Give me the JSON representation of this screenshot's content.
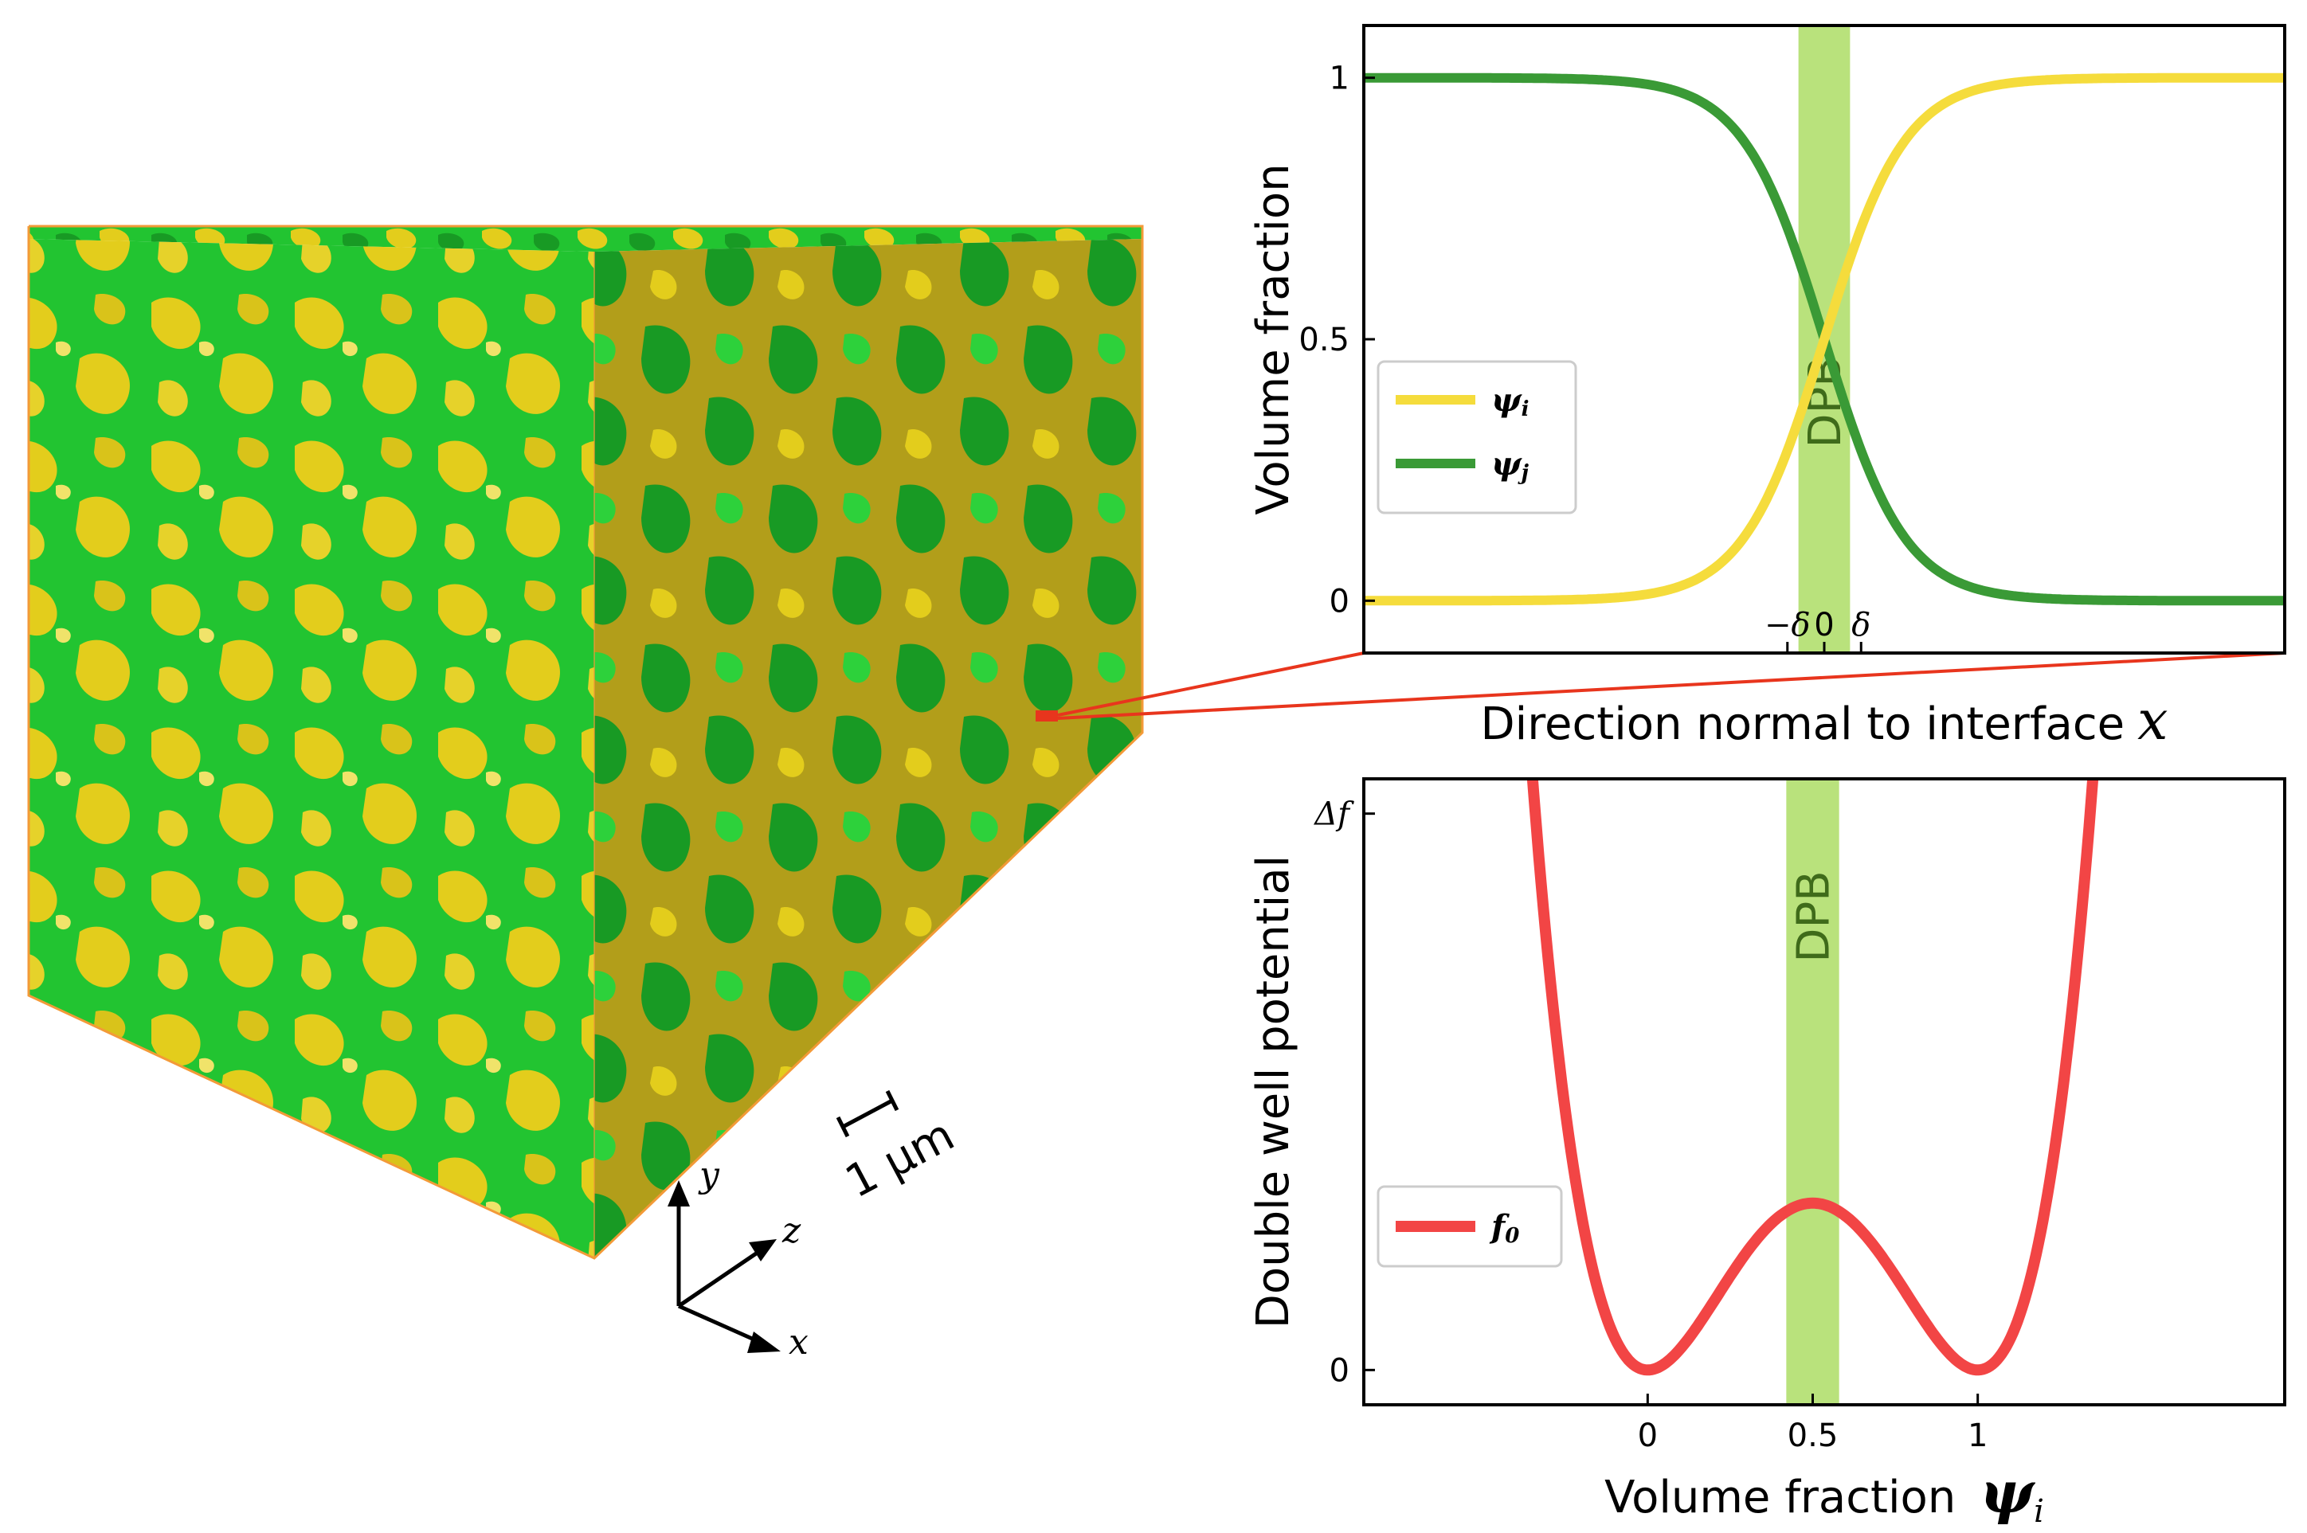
{
  "colors": {
    "yellow": "#f5dc3c",
    "green_dark": "#3a9a36",
    "red": "#f24545",
    "dpb_band": "#b9e27c",
    "dpb_text": "#3f6b1a",
    "cube_green": "#22c431",
    "cube_green_dark": "#189a24",
    "cube_yellow": "#e3cd1c",
    "cube_yellow_dark": "#b29e1a",
    "cube_edge": "#f39a38",
    "zoom_line": "#e8351d"
  },
  "cube": {
    "scale_bar_label": "1 μm",
    "axis_x": "x",
    "axis_y": "y",
    "axis_z": "z"
  },
  "chart_data": [
    {
      "type": "line",
      "title": "",
      "ylabel": "Volume fraction",
      "xlabel": "Direction normal to interface",
      "xlabel_symbol": "x",
      "x_ticks": [
        "−δ",
        "0",
        "δ"
      ],
      "x_tick_values": [
        -1,
        0,
        1
      ],
      "xlim": [
        -12.5,
        12.5
      ],
      "ylim": [
        -0.1,
        1.1
      ],
      "y_ticks": [
        "0",
        "0.5",
        "1"
      ],
      "y_tick_values": [
        0,
        0.5,
        1
      ],
      "band": {
        "label": "DPB",
        "range": [
          -0.7,
          0.7
        ]
      },
      "series": [
        {
          "name": "ψi",
          "legend_main": "ψ",
          "legend_sub": "i",
          "formula": "0.5*(1+tanh(x/2.2))",
          "color": "#f5dc3c"
        },
        {
          "name": "ψj",
          "legend_main": "ψ",
          "legend_sub": "j",
          "formula": "0.5*(1-tanh(x/2.2))",
          "color": "#3a9a36"
        }
      ],
      "legend_position": "middle-left"
    },
    {
      "type": "line",
      "title": "",
      "ylabel": "Double well potential",
      "xlabel": "Volume fraction",
      "xlabel_symbol": "ψ",
      "xlabel_sub": "i",
      "x_ticks": [
        "0",
        "0.5",
        "1"
      ],
      "x_tick_values": [
        0,
        0.5,
        1
      ],
      "xlim": [
        -0.86,
        1.93
      ],
      "ylim": [
        -0.0625,
        1.0625
      ],
      "y_ticks": [
        "0",
        "Δf"
      ],
      "y_tick_values": [
        0,
        1
      ],
      "band": {
        "label": "DPB",
        "range": [
          0.42,
          0.58
        ]
      },
      "series": [
        {
          "name": "f0",
          "legend_main": "f",
          "legend_sub": "0",
          "formula": "4.8*psi^2*(1-psi)^2",
          "color": "#f24545"
        }
      ],
      "legend_position": "lower-left"
    }
  ]
}
